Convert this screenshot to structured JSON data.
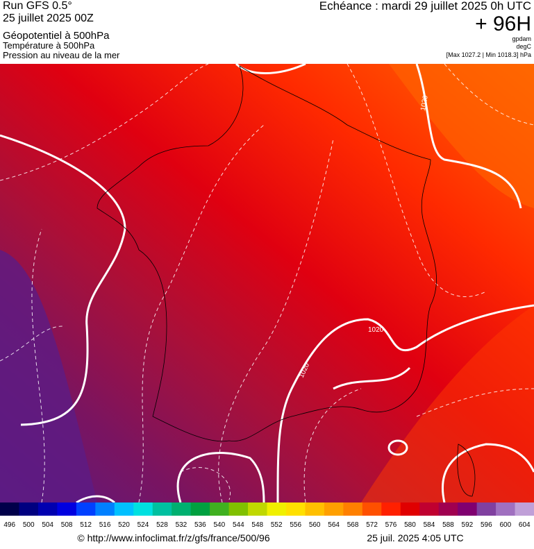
{
  "header": {
    "run": "Run GFS 0.5°",
    "date": "25 juillet 2025 00Z",
    "field1": "Géopotentiel à 500hPa",
    "field2": "Température à 500hPa",
    "field3": "Pression au niveau de la mer",
    "echeance": "Echéance : mardi 29 juillet 2025 0h UTC",
    "lead": "+ 96H",
    "unit1": "gpdam",
    "unit2": "degC",
    "extremes": "[Max 1027.2 | Min 1018.3] hPa"
  },
  "map": {
    "contour_labels": [
      "1020",
      "1020",
      "1020"
    ]
  },
  "colorbar": {
    "labels": [
      496,
      500,
      504,
      508,
      512,
      516,
      520,
      524,
      528,
      532,
      536,
      540,
      544,
      548,
      552,
      556,
      560,
      564,
      568,
      572,
      576,
      580,
      584,
      588,
      592,
      596,
      600,
      604
    ],
    "colors": [
      "#00004a",
      "#000080",
      "#0000b0",
      "#0000e0",
      "#0040ff",
      "#0080ff",
      "#00c0ff",
      "#00e0e0",
      "#00c0a0",
      "#00b070",
      "#00a040",
      "#40b020",
      "#80c000",
      "#c0d800",
      "#f0f000",
      "#ffe000",
      "#ffc000",
      "#ffa000",
      "#ff8000",
      "#ff5000",
      "#ff2000",
      "#e00000",
      "#c00030",
      "#a00050",
      "#800070",
      "#8040a0",
      "#a070c0",
      "#c0a0d8"
    ]
  },
  "footer": {
    "url": "© http://www.infoclimat.fr/z/gfs/france/500/96",
    "time": "25 juil. 2025  4:05 UTC"
  }
}
